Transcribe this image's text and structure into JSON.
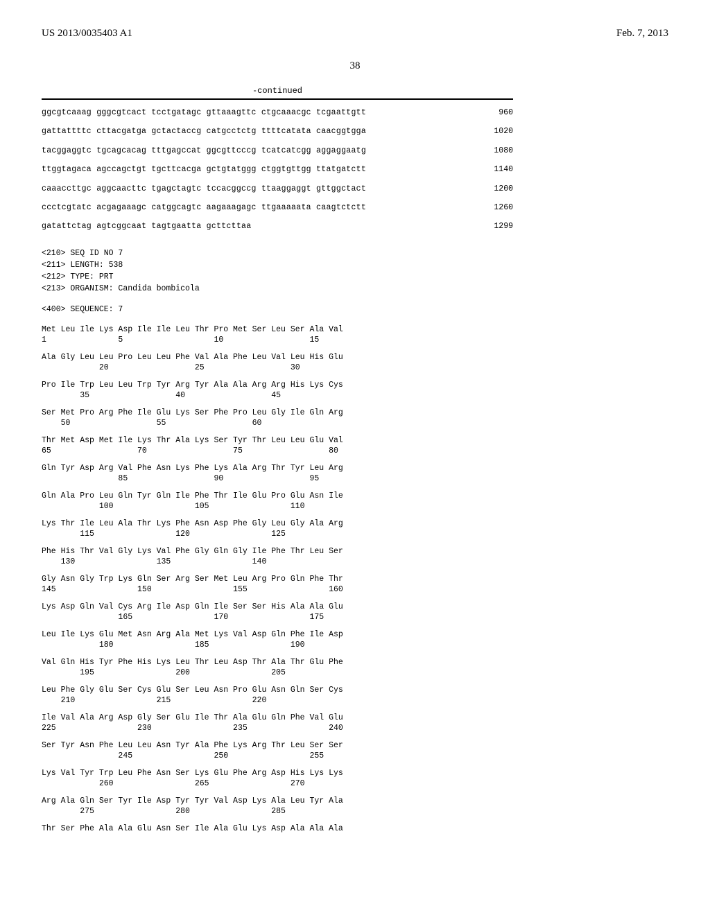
{
  "header": {
    "left": "US 2013/0035403 A1",
    "right": "Feb. 7, 2013"
  },
  "page_number": "38",
  "continued_label": "-continued",
  "nucleotide_rows": [
    {
      "seq": "ggcgtcaaag gggcgtcact tcctgatagc gttaaagttc ctgcaaacgc tcgaattgtt",
      "pos": "960"
    },
    {
      "seq": "gattattttc cttacgatga gctactaccg catgcctctg ttttcatata caacggtgga",
      "pos": "1020"
    },
    {
      "seq": "tacggaggtc tgcagcacag tttgagccat ggcgttcccg tcatcatcgg aggaggaatg",
      "pos": "1080"
    },
    {
      "seq": "ttggtagaca agccagctgt tgcttcacga gctgtatggg ctggtgttgg ttatgatctt",
      "pos": "1140"
    },
    {
      "seq": "caaaccttgc aggcaacttc tgagctagtc tccacggccg ttaaggaggt gttggctact",
      "pos": "1200"
    },
    {
      "seq": "ccctcgtatc acgagaaagc catggcagtc aagaaagagc ttgaaaaata caagtctctt",
      "pos": "1260"
    },
    {
      "seq": "gatattctag agtcggcaat tagtgaatta gcttcttaa",
      "pos": "1299"
    }
  ],
  "seq_meta": {
    "l1": "<210> SEQ ID NO 7",
    "l2": "<211> LENGTH: 538",
    "l3": "<212> TYPE: PRT",
    "l4": "<213> ORGANISM: Candida bombicola",
    "l5": "<400> SEQUENCE: 7"
  },
  "protein_rows": [
    {
      "aa": "Met Leu Ile Lys Asp Ile Ile Leu Thr Pro Met Ser Leu Ser Ala Val",
      "nums": "1               5                   10                  15"
    },
    {
      "aa": "Ala Gly Leu Leu Pro Leu Leu Phe Val Ala Phe Leu Val Leu His Glu",
      "nums": "            20                  25                  30"
    },
    {
      "aa": "Pro Ile Trp Leu Leu Trp Tyr Arg Tyr Ala Ala Arg Arg His Lys Cys",
      "nums": "        35                  40                  45"
    },
    {
      "aa": "Ser Met Pro Arg Phe Ile Glu Lys Ser Phe Pro Leu Gly Ile Gln Arg",
      "nums": "    50                  55                  60"
    },
    {
      "aa": "Thr Met Asp Met Ile Lys Thr Ala Lys Ser Tyr Thr Leu Leu Glu Val",
      "nums": "65                  70                  75                  80"
    },
    {
      "aa": "Gln Tyr Asp Arg Val Phe Asn Lys Phe Lys Ala Arg Thr Tyr Leu Arg",
      "nums": "                85                  90                  95"
    },
    {
      "aa": "Gln Ala Pro Leu Gln Tyr Gln Ile Phe Thr Ile Glu Pro Glu Asn Ile",
      "nums": "            100                 105                 110"
    },
    {
      "aa": "Lys Thr Ile Leu Ala Thr Lys Phe Asn Asp Phe Gly Leu Gly Ala Arg",
      "nums": "        115                 120                 125"
    },
    {
      "aa": "Phe His Thr Val Gly Lys Val Phe Gly Gln Gly Ile Phe Thr Leu Ser",
      "nums": "    130                 135                 140"
    },
    {
      "aa": "Gly Asn Gly Trp Lys Gln Ser Arg Ser Met Leu Arg Pro Gln Phe Thr",
      "nums": "145                 150                 155                 160"
    },
    {
      "aa": "Lys Asp Gln Val Cys Arg Ile Asp Gln Ile Ser Ser His Ala Ala Glu",
      "nums": "                165                 170                 175"
    },
    {
      "aa": "Leu Ile Lys Glu Met Asn Arg Ala Met Lys Val Asp Gln Phe Ile Asp",
      "nums": "            180                 185                 190"
    },
    {
      "aa": "Val Gln His Tyr Phe His Lys Leu Thr Leu Asp Thr Ala Thr Glu Phe",
      "nums": "        195                 200                 205"
    },
    {
      "aa": "Leu Phe Gly Glu Ser Cys Glu Ser Leu Asn Pro Glu Asn Gln Ser Cys",
      "nums": "    210                 215                 220"
    },
    {
      "aa": "Ile Val Ala Arg Asp Gly Ser Glu Ile Thr Ala Glu Gln Phe Val Glu",
      "nums": "225                 230                 235                 240"
    },
    {
      "aa": "Ser Tyr Asn Phe Leu Leu Asn Tyr Ala Phe Lys Arg Thr Leu Ser Ser",
      "nums": "                245                 250                 255"
    },
    {
      "aa": "Lys Val Tyr Trp Leu Phe Asn Ser Lys Glu Phe Arg Asp His Lys Lys",
      "nums": "            260                 265                 270"
    },
    {
      "aa": "Arg Ala Gln Ser Tyr Ile Asp Tyr Tyr Val Asp Lys Ala Leu Tyr Ala",
      "nums": "        275                 280                 285"
    },
    {
      "aa": "Thr Ser Phe Ala Ala Glu Asn Ser Ile Ala Glu Lys Asp Ala Ala Ala",
      "nums": ""
    }
  ]
}
